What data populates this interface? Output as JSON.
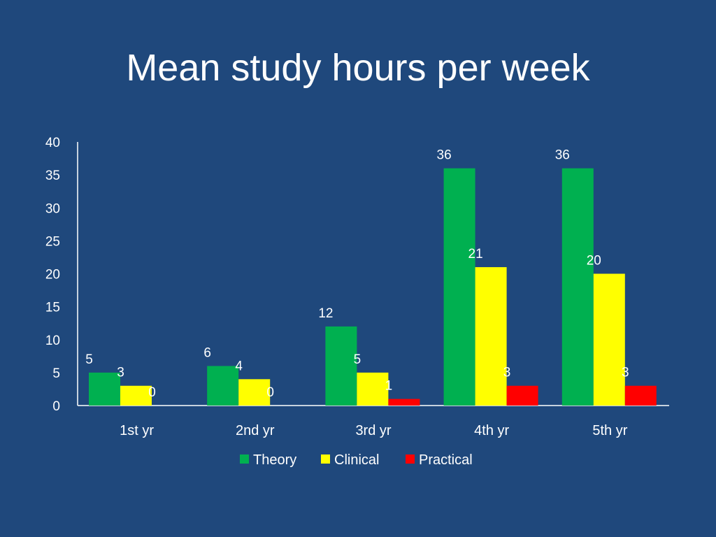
{
  "slide": {
    "title": "Mean study hours per week"
  },
  "chart_data": {
    "type": "bar",
    "title": "Mean study hours per week",
    "xlabel": "",
    "ylabel": "",
    "categories": [
      "1st yr",
      "2nd yr",
      "3rd yr",
      "4th yr",
      "5th yr"
    ],
    "series": [
      {
        "name": "Theory",
        "color": "#00b050",
        "values": [
          5,
          6,
          12,
          36,
          36
        ]
      },
      {
        "name": "Clinical",
        "color": "#ffff00",
        "values": [
          3,
          4,
          5,
          21,
          20
        ]
      },
      {
        "name": "Practical",
        "color": "#ff0000",
        "values": [
          0,
          0,
          1,
          3,
          3
        ]
      }
    ],
    "ylim": [
      0,
      40
    ],
    "yticks": [
      0,
      5,
      10,
      15,
      20,
      25,
      30,
      35,
      40
    ],
    "grid": false,
    "legend_position": "bottom",
    "data_labels": true
  }
}
